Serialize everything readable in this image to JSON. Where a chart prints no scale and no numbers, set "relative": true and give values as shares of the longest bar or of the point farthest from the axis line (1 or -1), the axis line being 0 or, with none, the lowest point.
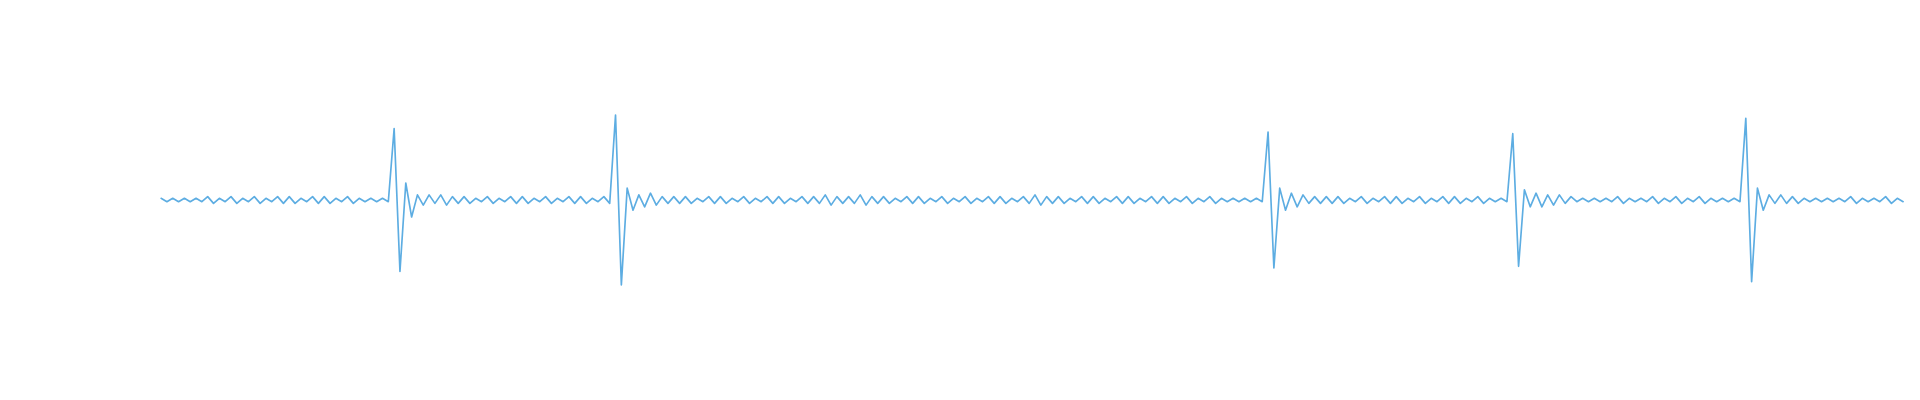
{
  "chart_data": {
    "type": "line",
    "relative": true,
    "tick_labels": false,
    "categories": [
      null,
      null,
      null,
      null,
      null,
      null,
      null,
      null,
      null,
      null,
      null,
      null,
      null,
      null,
      null,
      null,
      null,
      null,
      null,
      null,
      null,
      null,
      null,
      null,
      null,
      null,
      null,
      null,
      null,
      null,
      null,
      null,
      null,
      null,
      null,
      null,
      null,
      null,
      null,
      null,
      null,
      null,
      null,
      null,
      null,
      null,
      null,
      null,
      null,
      null,
      null,
      null,
      null,
      null,
      null,
      null,
      null,
      null,
      null,
      null,
      null,
      null,
      null,
      null,
      null,
      null,
      null,
      null,
      null,
      null,
      null,
      null,
      null,
      null,
      null,
      null,
      null,
      null,
      null,
      null,
      null,
      null,
      null,
      null,
      null,
      null,
      null,
      null,
      null,
      null,
      null,
      null,
      null,
      null,
      null,
      null,
      null,
      null,
      null,
      null,
      null,
      null,
      null,
      null,
      null,
      null,
      null,
      null,
      null,
      null,
      null,
      null,
      null,
      null,
      null,
      null,
      null,
      null,
      null,
      null,
      null,
      null,
      null,
      null,
      null,
      null,
      null,
      null,
      null,
      null,
      null,
      null,
      null,
      null,
      null,
      null,
      null,
      null,
      null,
      null,
      null,
      null,
      null,
      null,
      null,
      null,
      null,
      null,
      null,
      null,
      null,
      null,
      null,
      null,
      null,
      null,
      null,
      null,
      null,
      null,
      null,
      null,
      null,
      null,
      null,
      null,
      null,
      null,
      null,
      null,
      null,
      null,
      null,
      null,
      null,
      null,
      null,
      null,
      null,
      null,
      null,
      null,
      null,
      null,
      null,
      null,
      null,
      null,
      null,
      null,
      null,
      null,
      null,
      null,
      null,
      null,
      null,
      null,
      null,
      null,
      null,
      null,
      null,
      null,
      null,
      null,
      null,
      null,
      null,
      null,
      null,
      null,
      null,
      null,
      null,
      null,
      null,
      null,
      null,
      null,
      null,
      null,
      null,
      null,
      null,
      null,
      null,
      null,
      null,
      null,
      null,
      null,
      null,
      null,
      null,
      null,
      null,
      null,
      null,
      null,
      null,
      null,
      null,
      null,
      null,
      null,
      null,
      null,
      null,
      null,
      null,
      null,
      null,
      null,
      null,
      null,
      null,
      null,
      null,
      null,
      null,
      null,
      null,
      null,
      null,
      null,
      null,
      null,
      null,
      null,
      null,
      null,
      null,
      null,
      null,
      null,
      null,
      null,
      null,
      null,
      null,
      null,
      null,
      null,
      null,
      null,
      null,
      null,
      null,
      null,
      null,
      null,
      null,
      null,
      null,
      null,
      null,
      null,
      null,
      null
    ],
    "series": [
      {
        "color": "#5dade2",
        "values": [
          0.51,
          0.49,
          0.51,
          0.49,
          0.51,
          0.49,
          0.51,
          0.49,
          0.52,
          0.48,
          0.51,
          0.49,
          0.52,
          0.48,
          0.51,
          0.49,
          0.52,
          0.48,
          0.51,
          0.49,
          0.52,
          0.48,
          0.52,
          0.48,
          0.51,
          0.49,
          0.52,
          0.48,
          0.52,
          0.48,
          0.51,
          0.49,
          0.52,
          0.48,
          0.51,
          0.49,
          0.51,
          0.49,
          0.51,
          0.49,
          0.92,
          0.08,
          0.6,
          0.4,
          0.53,
          0.47,
          0.53,
          0.48,
          0.53,
          0.47,
          0.52,
          0.48,
          0.52,
          0.48,
          0.51,
          0.49,
          0.52,
          0.48,
          0.51,
          0.49,
          0.52,
          0.48,
          0.52,
          0.48,
          0.51,
          0.49,
          0.52,
          0.48,
          0.51,
          0.49,
          0.52,
          0.48,
          0.52,
          0.48,
          0.51,
          0.49,
          0.52,
          0.48,
          1.0,
          0.0,
          0.57,
          0.44,
          0.53,
          0.46,
          0.54,
          0.47,
          0.52,
          0.48,
          0.52,
          0.48,
          0.52,
          0.48,
          0.51,
          0.49,
          0.52,
          0.48,
          0.52,
          0.48,
          0.51,
          0.49,
          0.52,
          0.48,
          0.51,
          0.49,
          0.52,
          0.48,
          0.52,
          0.48,
          0.51,
          0.49,
          0.52,
          0.48,
          0.52,
          0.48,
          0.53,
          0.47,
          0.52,
          0.48,
          0.52,
          0.48,
          0.53,
          0.47,
          0.52,
          0.48,
          0.52,
          0.48,
          0.51,
          0.49,
          0.52,
          0.48,
          0.52,
          0.48,
          0.51,
          0.49,
          0.52,
          0.48,
          0.51,
          0.49,
          0.52,
          0.48,
          0.51,
          0.49,
          0.52,
          0.48,
          0.52,
          0.48,
          0.51,
          0.49,
          0.52,
          0.48,
          0.53,
          0.47,
          0.52,
          0.48,
          0.52,
          0.48,
          0.51,
          0.49,
          0.52,
          0.48,
          0.52,
          0.48,
          0.51,
          0.49,
          0.52,
          0.48,
          0.52,
          0.48,
          0.51,
          0.49,
          0.52,
          0.48,
          0.52,
          0.48,
          0.51,
          0.49,
          0.52,
          0.48,
          0.51,
          0.49,
          0.52,
          0.48,
          0.51,
          0.49,
          0.51,
          0.49,
          0.51,
          0.49,
          0.51,
          0.49,
          0.9,
          0.1,
          0.57,
          0.44,
          0.54,
          0.46,
          0.53,
          0.48,
          0.52,
          0.48,
          0.52,
          0.48,
          0.52,
          0.48,
          0.51,
          0.49,
          0.52,
          0.48,
          0.51,
          0.49,
          0.52,
          0.48,
          0.52,
          0.48,
          0.51,
          0.49,
          0.52,
          0.48,
          0.51,
          0.49,
          0.52,
          0.48,
          0.52,
          0.48,
          0.51,
          0.49,
          0.52,
          0.48,
          0.51,
          0.49,
          0.51,
          0.49,
          0.89,
          0.11,
          0.56,
          0.46,
          0.54,
          0.46,
          0.53,
          0.47,
          0.53,
          0.48,
          0.52,
          0.49,
          0.51,
          0.49,
          0.51,
          0.49,
          0.51,
          0.49,
          0.52,
          0.48,
          0.51,
          0.49,
          0.51,
          0.49,
          0.52,
          0.48,
          0.51,
          0.49,
          0.52,
          0.48,
          0.51,
          0.49,
          0.52,
          0.48,
          0.51,
          0.49,
          0.51,
          0.49,
          0.51,
          0.49,
          0.98,
          0.02,
          0.57,
          0.44,
          0.53,
          0.48,
          0.53,
          0.48,
          0.52,
          0.48,
          0.51,
          0.49,
          0.51,
          0.49,
          0.51,
          0.49,
          0.51,
          0.49,
          0.52,
          0.48,
          0.51,
          0.49,
          0.51,
          0.49,
          0.52,
          0.48,
          0.51,
          0.49
        ]
      }
    ]
  }
}
